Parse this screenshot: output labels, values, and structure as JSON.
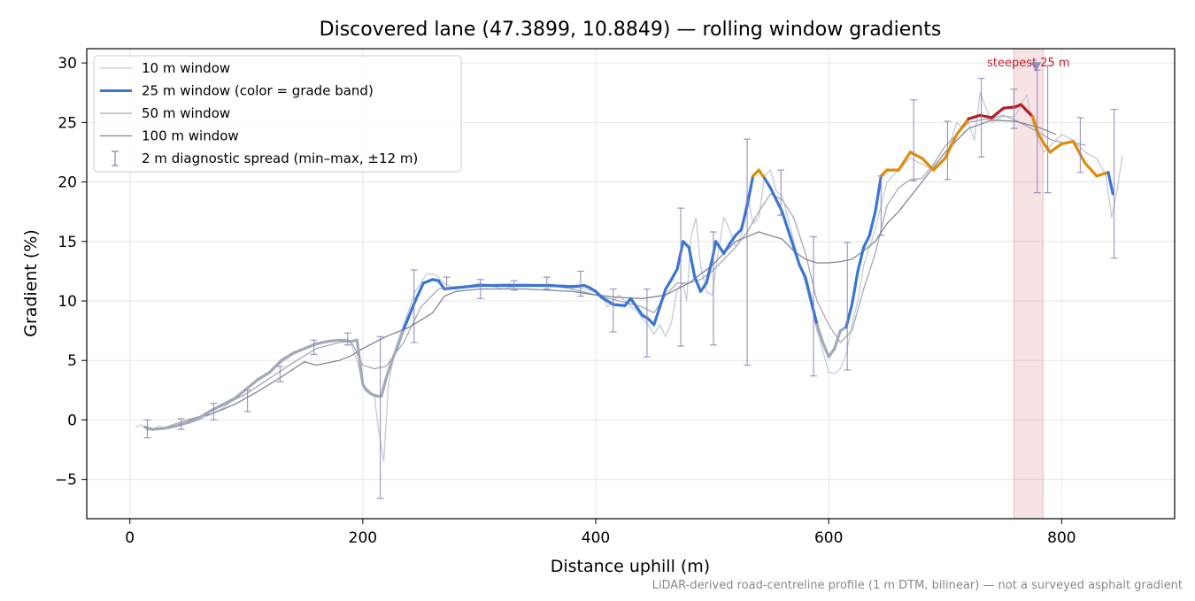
{
  "chart_data": {
    "type": "line",
    "title": "Discovered lane (47.3899, 10.8849) — rolling window gradients",
    "xlabel": "Distance uphill (m)",
    "ylabel": "Gradient (%)",
    "xlim": [
      -37,
      897
    ],
    "ylim": [
      -8.3,
      31.2
    ],
    "xticks": [
      0,
      200,
      400,
      600,
      800
    ],
    "yticks": [
      -5,
      0,
      5,
      10,
      15,
      20,
      25,
      30
    ],
    "ytick_labels": [
      "−5",
      "0",
      "5",
      "10",
      "15",
      "20",
      "25",
      "30"
    ],
    "grid": true,
    "legend_position": "upper-left",
    "footnote": "LiDAR-derived road-centreline profile (1 m DTM, bilinear) — not a surveyed asphalt gradient",
    "highlight": {
      "label": "steepest 25 m",
      "x_range": [
        759,
        784
      ],
      "marker": [
        778,
        29.7
      ],
      "color": "#c0202f"
    },
    "grade_band_colors": {
      "gentle": "#a0aab8",
      "moderate": "#3a75d5",
      "steep": "#e08a0b",
      "very_steep": "#b81c24"
    },
    "series": [
      {
        "name": "10 m window",
        "color": "#c4cbd7",
        "width": 1.3,
        "x": [
          5,
          10,
          15,
          20,
          25,
          30,
          35,
          40,
          50,
          60,
          70,
          80,
          90,
          100,
          110,
          120,
          130,
          140,
          150,
          160,
          170,
          180,
          185,
          190,
          195,
          200,
          205,
          210,
          213,
          218,
          222,
          228,
          235,
          245,
          255,
          262,
          270,
          280,
          300,
          320,
          340,
          360,
          380,
          400,
          405,
          410,
          420,
          425,
          430,
          435,
          440,
          445,
          450,
          455,
          460,
          465,
          470,
          475,
          478,
          482,
          486,
          490,
          495,
          500,
          505,
          510,
          515,
          520,
          525,
          530,
          535,
          540,
          545,
          550,
          555,
          560,
          565,
          570,
          575,
          580,
          585,
          590,
          595,
          600,
          605,
          610,
          615,
          620,
          625,
          630,
          640,
          650,
          660,
          665,
          670,
          680,
          690,
          700,
          710,
          715,
          720,
          725,
          730,
          740,
          750,
          760,
          765,
          770,
          775,
          780,
          785,
          790,
          800,
          810,
          820,
          830,
          838,
          843,
          848,
          852
        ],
        "y": [
          -0.6,
          -0.4,
          -0.9,
          -0.8,
          -0.5,
          -0.7,
          -0.5,
          -0.5,
          -0.3,
          0,
          0.5,
          1,
          1.8,
          2.7,
          3.3,
          4,
          4.8,
          5.5,
          6,
          6.3,
          6.6,
          6.7,
          6.8,
          6.4,
          5,
          3,
          2.5,
          2,
          -0.5,
          -3.5,
          3,
          6,
          8,
          10.8,
          12.3,
          12.2,
          11.5,
          11,
          11.5,
          11,
          11.4,
          11.2,
          11.2,
          10.8,
          10.5,
          9.5,
          10.5,
          10,
          9.5,
          9.2,
          8.5,
          8,
          7.2,
          8,
          7,
          8.2,
          11,
          11.5,
          10,
          15.5,
          17,
          13,
          10.8,
          10.5,
          14,
          17,
          16,
          14.5,
          15.5,
          19,
          16.5,
          17,
          20.5,
          21,
          19.2,
          18.8,
          17,
          15,
          13,
          11.5,
          9.5,
          7.5,
          5.8,
          4,
          3.9,
          4.3,
          5.5,
          8,
          10,
          13,
          16,
          20,
          21,
          21.5,
          22,
          21.5,
          21,
          22,
          25,
          24.5,
          25,
          23.5,
          27.5,
          25,
          25.5,
          25.5,
          26.5,
          27.3,
          25,
          23.5,
          22.5,
          23,
          24,
          23.5,
          22.5,
          22,
          20.5,
          17,
          19.5,
          22.2
        ]
      },
      {
        "name": "25 m window (color = grade band)",
        "color": "#3a75d5",
        "width": 3.2,
        "x": [
          13,
          20,
          30,
          40,
          50,
          60,
          70,
          80,
          90,
          100,
          110,
          120,
          130,
          140,
          150,
          160,
          170,
          180,
          190,
          195,
          200,
          203,
          207,
          212,
          216,
          220,
          225,
          230,
          235,
          240,
          245,
          252,
          260,
          265,
          270,
          280,
          300,
          320,
          340,
          360,
          380,
          390,
          395,
          400,
          405,
          410,
          415,
          425,
          430,
          435,
          440,
          445,
          450,
          455,
          460,
          465,
          470,
          475,
          480,
          485,
          490,
          495,
          500,
          503,
          510,
          515,
          520,
          525,
          530,
          535,
          540,
          545,
          550,
          555,
          560,
          565,
          570,
          575,
          580,
          585,
          590,
          595,
          600,
          605,
          610,
          615,
          620,
          625,
          630,
          635,
          640,
          645,
          650,
          660,
          670,
          680,
          690,
          700,
          710,
          720,
          730,
          740,
          750,
          760,
          765,
          770,
          775,
          780,
          785,
          790,
          800,
          810,
          820,
          830,
          840,
          844
        ],
        "y": [
          -0.6,
          -0.8,
          -0.7,
          -0.5,
          -0.2,
          0.2,
          0.8,
          1.3,
          1.8,
          2.6,
          3.4,
          4,
          5,
          5.6,
          6,
          6.4,
          6.6,
          6.7,
          6.6,
          6.7,
          3,
          2.5,
          2.2,
          2,
          2,
          3.5,
          5,
          6.2,
          7.6,
          8.8,
          10,
          11.5,
          11.8,
          11.7,
          11,
          11.1,
          11.3,
          11.3,
          11.3,
          11.3,
          11.2,
          11.3,
          11.1,
          10.8,
          10.3,
          10,
          9.7,
          9.6,
          10.2,
          9.5,
          8.8,
          8.5,
          8,
          9.5,
          11,
          11.8,
          12.7,
          15,
          14.5,
          12,
          10.8,
          11.5,
          13.5,
          15,
          14,
          14.8,
          15.5,
          16,
          18,
          20.5,
          21,
          20.3,
          19.5,
          18.5,
          17.5,
          16,
          14.5,
          13,
          12,
          10,
          8,
          6.5,
          5.3,
          6,
          7.5,
          7.8,
          9.7,
          12.5,
          14.5,
          15.5,
          17.5,
          20.5,
          21,
          21,
          22.5,
          22,
          21,
          22,
          24,
          25.3,
          25.6,
          25.4,
          26.2,
          26.3,
          26.5,
          26,
          25.5,
          24,
          23.2,
          22.5,
          23.2,
          23.4,
          21.6,
          20.5,
          20.8,
          19
        ]
      },
      {
        "name": "50 m window",
        "color": "#a3aab6",
        "width": 1.3,
        "x": [
          25,
          40,
          60,
          80,
          100,
          120,
          140,
          160,
          180,
          190,
          200,
          210,
          220,
          235,
          250,
          265,
          280,
          300,
          320,
          340,
          360,
          380,
          400,
          420,
          440,
          450,
          460,
          470,
          480,
          490,
          500,
          510,
          520,
          530,
          540,
          550,
          560,
          570,
          580,
          590,
          600,
          610,
          620,
          630,
          640,
          650,
          660,
          670,
          680,
          690,
          700,
          710,
          720,
          730,
          740,
          750,
          760,
          770,
          780,
          790,
          800,
          810,
          820
        ],
        "y": [
          -0.8,
          -0.3,
          0.3,
          1.2,
          2.2,
          3.5,
          4.8,
          6,
          6.5,
          6.6,
          4.6,
          4.3,
          4.5,
          6.5,
          9.5,
          11,
          11.2,
          11.3,
          11.4,
          11.4,
          11.3,
          11,
          10.5,
          10,
          9.5,
          9,
          10.5,
          11.5,
          11.5,
          11.8,
          12.5,
          13.5,
          14.5,
          15.8,
          17.5,
          19,
          18.5,
          17,
          14,
          10,
          8,
          6.5,
          7.5,
          11,
          14,
          18,
          19.5,
          20.2,
          20.3,
          21.5,
          23,
          24,
          25,
          25.2,
          25.3,
          25.6,
          25.2,
          24.7,
          24.2,
          23.6,
          23.3,
          23.3,
          23.1
        ]
      },
      {
        "name": "100 m window",
        "color": "#7f8794",
        "width": 1.3,
        "x": [
          50,
          70,
          90,
          110,
          130,
          150,
          160,
          170,
          180,
          190,
          200,
          210,
          220,
          240,
          260,
          270,
          280,
          300,
          320,
          340,
          360,
          380,
          400,
          420,
          440,
          460,
          480,
          500,
          520,
          540,
          560,
          570,
          580,
          590,
          600,
          610,
          620,
          630,
          640,
          650,
          660,
          680,
          700,
          720,
          740,
          760,
          780,
          795
        ],
        "y": [
          0,
          0.5,
          1.3,
          2.4,
          3.6,
          4.9,
          4.6,
          4.8,
          5,
          5.4,
          6,
          6.5,
          7,
          7.8,
          9,
          10.4,
          10.8,
          11,
          11,
          11,
          10.9,
          10.8,
          10.5,
          10.3,
          10.2,
          10.5,
          11.5,
          13,
          15,
          15.8,
          15.2,
          14.2,
          13.5,
          13.2,
          13.2,
          13.3,
          13.5,
          14.2,
          15,
          16.5,
          17.5,
          20,
          22.5,
          24.5,
          25.2,
          25.1,
          24.6,
          24
        ]
      }
    ],
    "diagnostic_spread": {
      "name": "2 m diagnostic spread (min–max, ±12 m)",
      "color": "#8a7fb5",
      "items": [
        {
          "x": 15,
          "lo": -1.5,
          "hi": 0
        },
        {
          "x": 44,
          "lo": -0.8,
          "hi": 0.1
        },
        {
          "x": 72,
          "lo": 0,
          "hi": 1.4
        },
        {
          "x": 101,
          "lo": 0.7,
          "hi": 2.5
        },
        {
          "x": 129,
          "lo": 3.2,
          "hi": 4.5
        },
        {
          "x": 158,
          "lo": 5.5,
          "hi": 6.7
        },
        {
          "x": 187,
          "lo": 6.3,
          "hi": 7.3
        },
        {
          "x": 215,
          "lo": -6.6,
          "hi": 7
        },
        {
          "x": 244,
          "lo": 6.5,
          "hi": 12.6
        },
        {
          "x": 272,
          "lo": 11,
          "hi": 12
        },
        {
          "x": 301,
          "lo": 10.2,
          "hi": 11.8
        },
        {
          "x": 330,
          "lo": 10.9,
          "hi": 11.7
        },
        {
          "x": 358,
          "lo": 11,
          "hi": 12
        },
        {
          "x": 387,
          "lo": 10.4,
          "hi": 12.5
        },
        {
          "x": 415,
          "lo": 7.4,
          "hi": 11
        },
        {
          "x": 444,
          "lo": 5.3,
          "hi": 11
        },
        {
          "x": 473,
          "lo": 6.2,
          "hi": 17.8
        },
        {
          "x": 501,
          "lo": 6.3,
          "hi": 15.8
        },
        {
          "x": 530,
          "lo": 4.6,
          "hi": 23.6
        },
        {
          "x": 559,
          "lo": 17.2,
          "hi": 21
        },
        {
          "x": 587,
          "lo": 3.7,
          "hi": 15.4
        },
        {
          "x": 616,
          "lo": 4.2,
          "hi": 14.9
        },
        {
          "x": 645,
          "lo": 15.5,
          "hi": 20.5
        },
        {
          "x": 673,
          "lo": 20.1,
          "hi": 26.9
        },
        {
          "x": 702,
          "lo": 20.2,
          "hi": 25.1
        },
        {
          "x": 731,
          "lo": 22.1,
          "hi": 28.7
        },
        {
          "x": 759,
          "lo": 24.5,
          "hi": 27.8
        },
        {
          "x": 779,
          "lo": 19.1,
          "hi": 29.4
        },
        {
          "x": 788,
          "lo": 19.1,
          "hi": 29.8
        },
        {
          "x": 816,
          "lo": 20.8,
          "hi": 25.4
        },
        {
          "x": 845,
          "lo": 13.6,
          "hi": 26.1
        }
      ]
    }
  }
}
